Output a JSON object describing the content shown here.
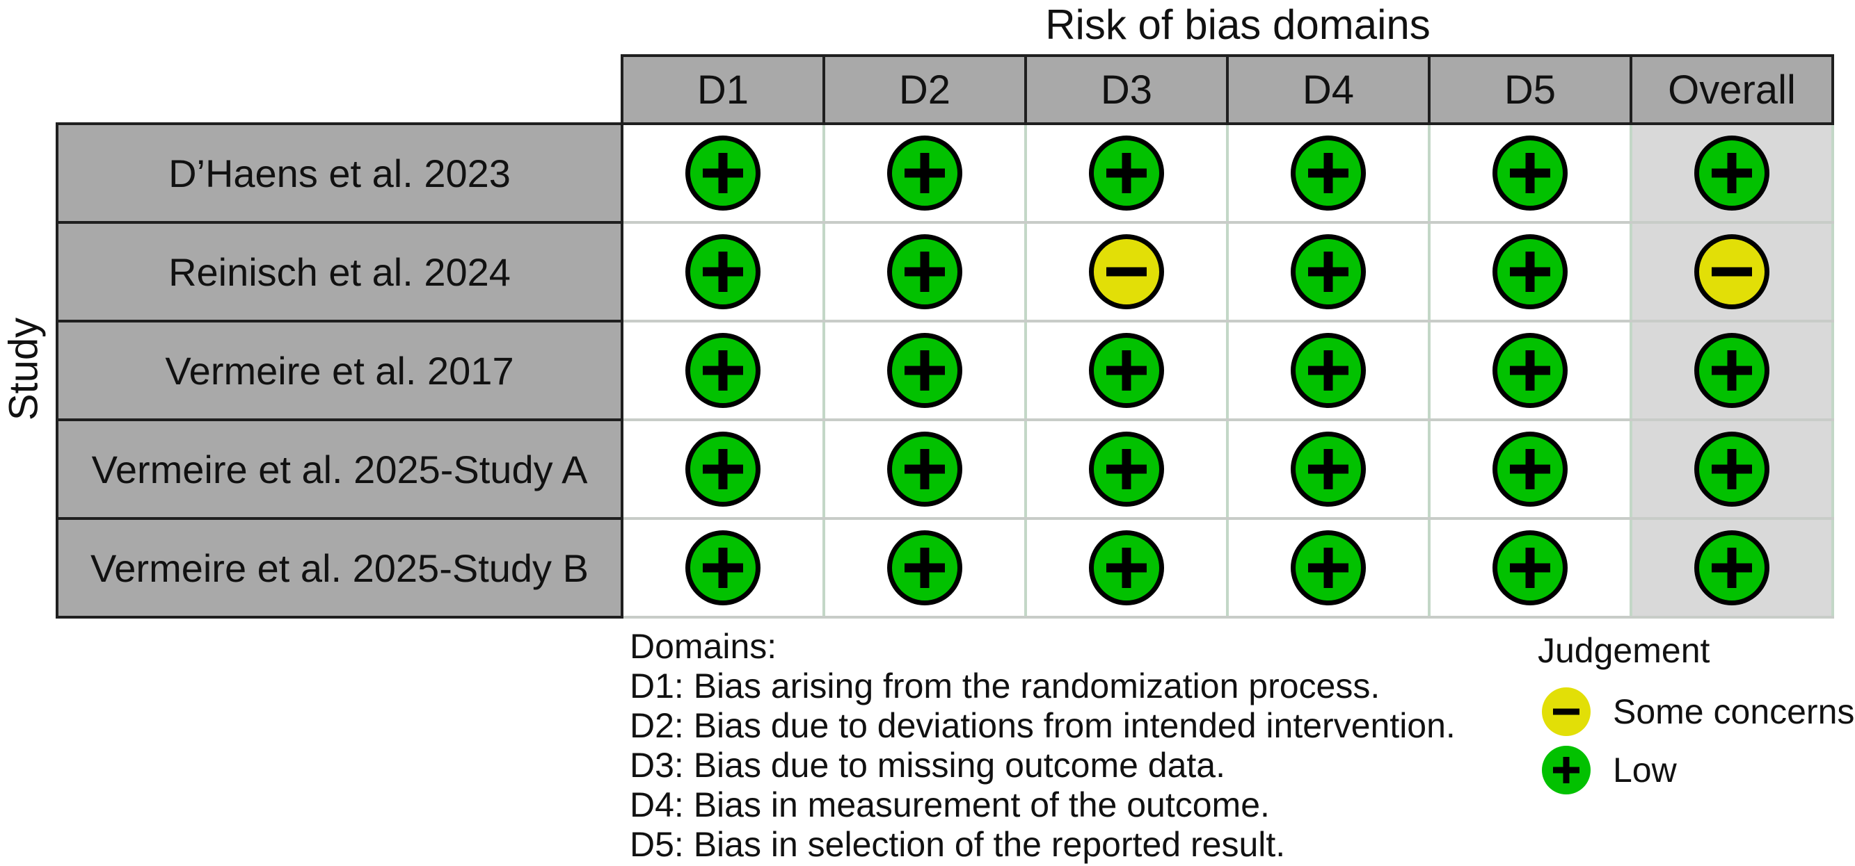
{
  "title": "Risk of bias domains",
  "axis_label": "Study",
  "chart_data": {
    "type": "table",
    "title": "Risk of bias domains",
    "ylabel": "Study",
    "columns": [
      "D1",
      "D2",
      "D3",
      "D4",
      "D5",
      "Overall"
    ],
    "rows": [
      "D’Haens et al. 2023",
      "Reinisch et al. 2024",
      "Vermeire et al. 2017",
      "Vermeire et al. 2025-Study A",
      "Vermeire et al. 2025-Study B"
    ],
    "values": [
      [
        "Low",
        "Low",
        "Low",
        "Low",
        "Low",
        "Low"
      ],
      [
        "Low",
        "Low",
        "Some concerns",
        "Low",
        "Low",
        "Some concerns"
      ],
      [
        "Low",
        "Low",
        "Low",
        "Low",
        "Low",
        "Low"
      ],
      [
        "Low",
        "Low",
        "Low",
        "Low",
        "Low",
        "Low"
      ],
      [
        "Low",
        "Low",
        "Low",
        "Low",
        "Low",
        "Low"
      ]
    ],
    "legend_position": "bottom-right",
    "grid": true
  },
  "judgement_styles": {
    "Low": {
      "color": "#02C100",
      "symbol": "plus",
      "icon": "plus-circle-icon"
    },
    "Some concerns": {
      "color": "#E2DF07",
      "symbol": "minus",
      "icon": "minus-circle-icon"
    }
  },
  "caption": {
    "lines": [
      "Domains:",
      "D1: Bias arising from the randomization process.",
      "D2: Bias due to deviations from intended intervention.",
      "D3: Bias due to missing outcome data.",
      "D4: Bias in measurement of the outcome.",
      "D5: Bias in selection of the reported result."
    ]
  },
  "legend": {
    "title": "Judgement",
    "items": [
      {
        "label": "Some concerns"
      },
      {
        "label": "Low"
      }
    ]
  },
  "colors": {
    "header_bg": "#a9a9a9",
    "overall_column_bg": "#d9d9d9",
    "dark_border": "#1f1f1f",
    "grid_horizontal": "#c8ccc8",
    "grid_vertical": "#c3d7c7",
    "low": "#02C100",
    "some_concerns": "#E2DF07"
  }
}
